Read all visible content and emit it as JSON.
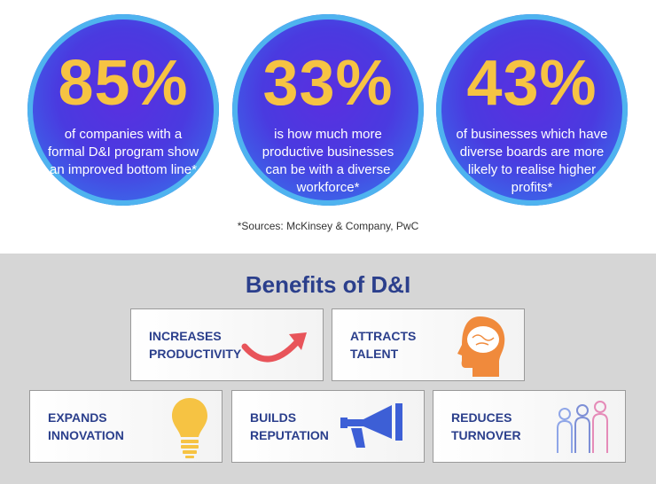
{
  "stats": [
    {
      "value": "85%",
      "text": "of companies with a formal D&I program show an improved bottom line*"
    },
    {
      "value": "33%",
      "text": "is how much more productive businesses can be with a diverse workforce*"
    },
    {
      "value": "43%",
      "text": "of businesses which have diverse boards are more likely to realise higher profits*"
    }
  ],
  "source": "*Sources: McKinsey & Company, PwC",
  "benefits": {
    "title": "Benefits of D&I",
    "items": [
      {
        "label": "INCREASES\nPRODUCTIVITY",
        "icon": "arrow-up-icon"
      },
      {
        "label": "ATTRACTS\nTALENT",
        "icon": "head-brain-icon"
      },
      {
        "label": "EXPANDS\nINNOVATION",
        "icon": "lightbulb-icon"
      },
      {
        "label": "BUILDS\nREPUTATION",
        "icon": "megaphone-icon"
      },
      {
        "label": "REDUCES\nTURNOVER",
        "icon": "people-group-icon"
      }
    ]
  },
  "colors": {
    "accent_yellow": "#f6c343",
    "title_blue": "#2b3f8c",
    "arrow_red": "#e8545a",
    "head_orange": "#f08a3c",
    "megaphone_blue": "#3d5fd6"
  }
}
